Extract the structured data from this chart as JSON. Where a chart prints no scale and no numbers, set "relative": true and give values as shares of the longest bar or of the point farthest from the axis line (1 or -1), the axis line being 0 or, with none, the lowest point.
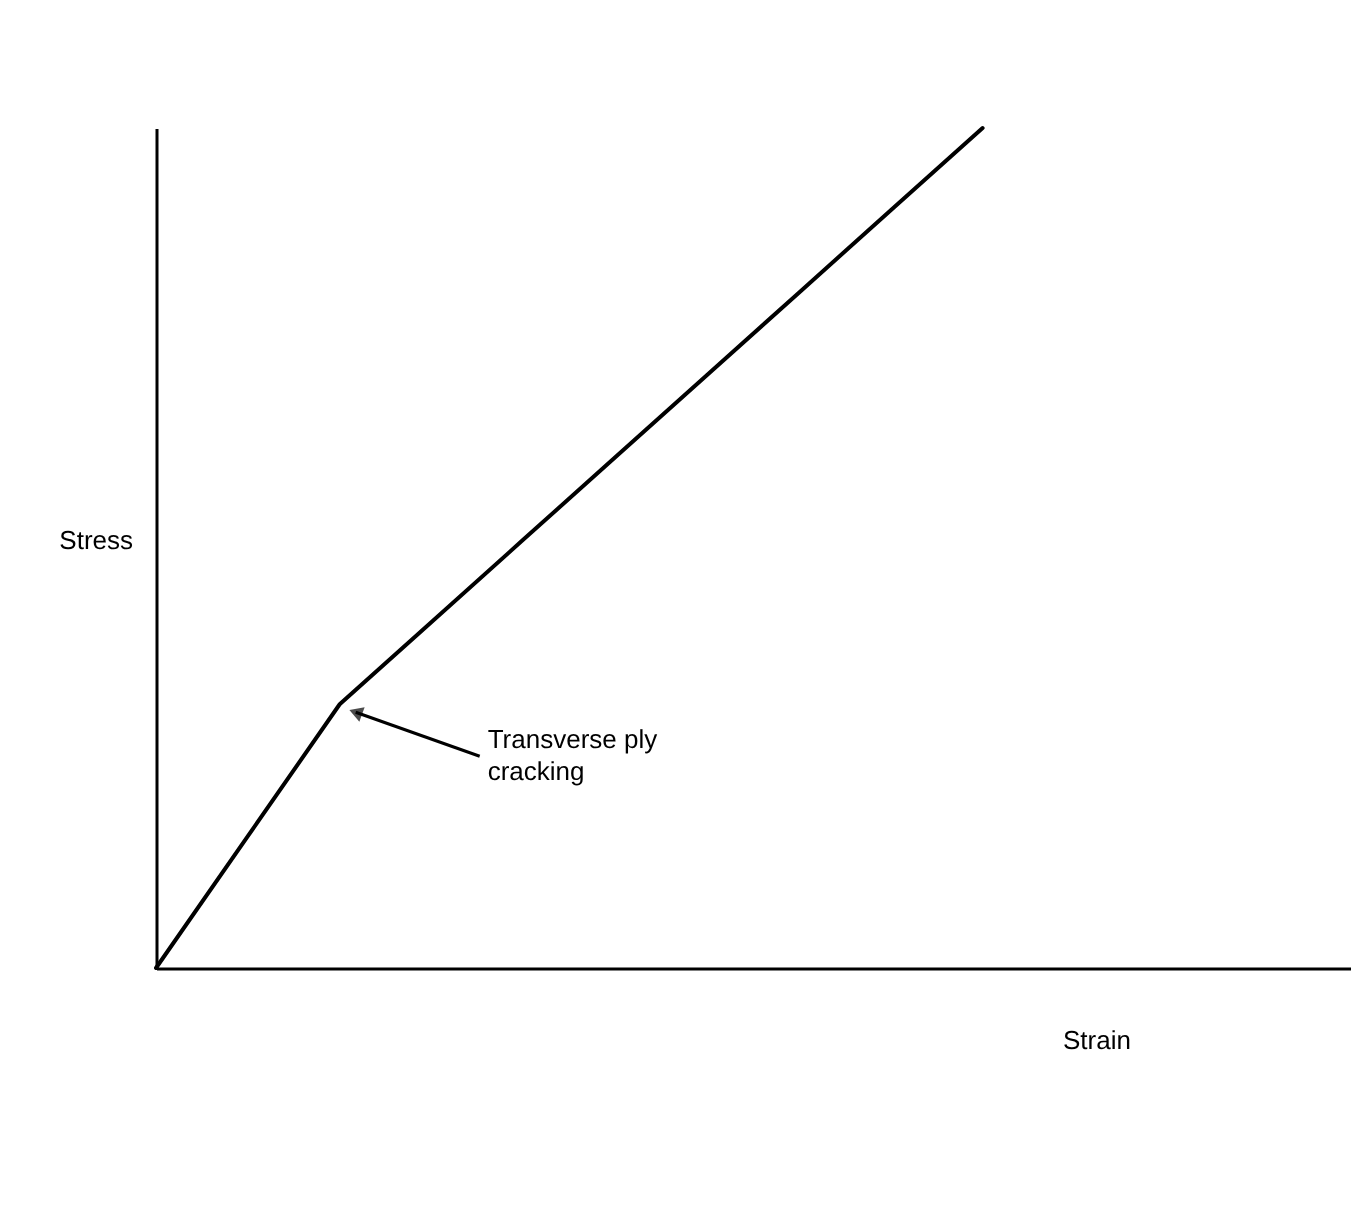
{
  "chart_data": {
    "type": "line",
    "relative": true,
    "xlabel": "Strain",
    "ylabel": "Stress",
    "categories": [
      null,
      null,
      null,
      null,
      null,
      null,
      null,
      null,
      null,
      null,
      null,
      null,
      null,
      null
    ],
    "series": [
      {
        "color": "#000000",
        "values": [
          0,
          0.157,
          0.314,
          0.412,
          0.51,
          0.608,
          0.706,
          0.804,
          0.902,
          1,
          null,
          null,
          null,
          null
        ]
      }
    ],
    "annotations": [
      "Transverse ply cracking"
    ],
    "grid": false,
    "marker": "none",
    "line_style": "solid"
  }
}
